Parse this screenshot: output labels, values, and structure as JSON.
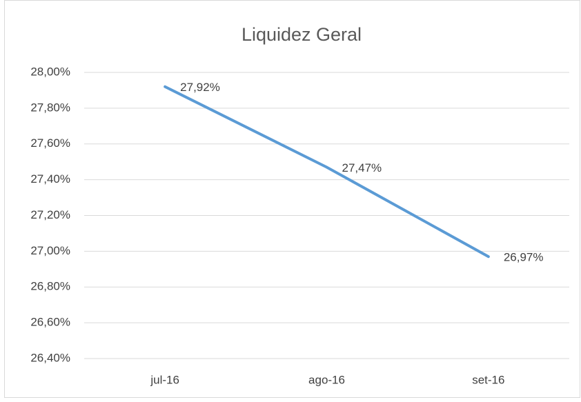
{
  "chart_data": {
    "type": "line",
    "title": "Liquidez Geral",
    "categories": [
      "jul-16",
      "ago-16",
      "set-16"
    ],
    "series": [
      {
        "name": "Liquidez Geral",
        "color": "#5b9bd5",
        "values": [
          27.92,
          27.47,
          26.97
        ],
        "value_labels": [
          "27,92%",
          "27,47%",
          "26,97%"
        ]
      }
    ],
    "ylim": [
      26.4,
      28.0
    ],
    "yticks": [
      {
        "value": 26.4,
        "label": "26,40%"
      },
      {
        "value": 26.6,
        "label": "26,60%"
      },
      {
        "value": 26.8,
        "label": "26,80%"
      },
      {
        "value": 27.0,
        "label": "27,00%"
      },
      {
        "value": 27.2,
        "label": "27,20%"
      },
      {
        "value": 27.4,
        "label": "27,40%"
      },
      {
        "value": 27.6,
        "label": "27,60%"
      },
      {
        "value": 27.8,
        "label": "27,80%"
      },
      {
        "value": 28.0,
        "label": "28,00%"
      }
    ],
    "grid": true
  }
}
